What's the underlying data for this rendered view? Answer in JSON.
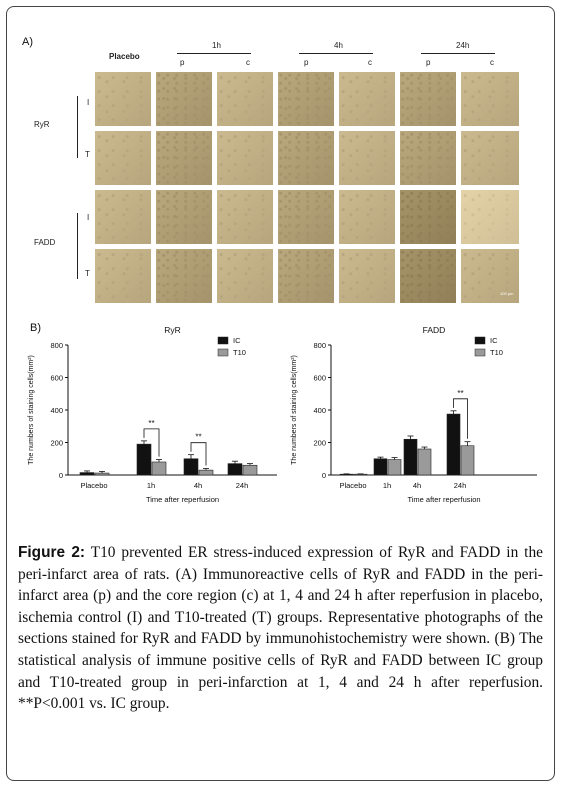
{
  "panel_a": {
    "label": "A)",
    "columns": {
      "placebo": "Placebo",
      "g1": "1h",
      "g4": "4h",
      "g24": "24h",
      "p": "p",
      "c": "c"
    },
    "rows": {
      "ryr": "RyR",
      "fadd": "FADD",
      "i": "I",
      "t": "T"
    },
    "scale_bar": "100 μm"
  },
  "panel_b": {
    "label": "B)"
  },
  "chart_data": [
    {
      "type": "bar",
      "title": "RyR",
      "ylabel": "The numbers of staining cells(mm²)",
      "xlabel": "Time after reperfusion",
      "categories": [
        "Placebo",
        "1h",
        "4h",
        "24h"
      ],
      "ylim": [
        0,
        800
      ],
      "yticks": [
        "0",
        "200",
        "400",
        "600",
        "800"
      ],
      "series": [
        {
          "name": "IC",
          "values": [
            15,
            190,
            100,
            70
          ],
          "errors": [
            10,
            20,
            25,
            15
          ],
          "color": "#111111"
        },
        {
          "name": "T10",
          "values": [
            12,
            80,
            30,
            60
          ],
          "errors": [
            10,
            15,
            10,
            10
          ],
          "color": "#9a9a9a"
        }
      ],
      "significance": [
        {
          "category": "1h",
          "label": "**"
        },
        {
          "category": "4h",
          "label": "**"
        }
      ]
    },
    {
      "type": "bar",
      "title": "FADD",
      "ylabel": "The numbers of staining cells(mm²)",
      "xlabel": "Time after reperfusion",
      "categories": [
        "Placebo",
        "1h",
        "4h",
        "24h"
      ],
      "ylim": [
        0,
        800
      ],
      "yticks": [
        "0",
        "200",
        "400",
        "600",
        "800"
      ],
      "series": [
        {
          "name": "IC",
          "values": [
            5,
            100,
            220,
            375
          ],
          "errors": [
            2,
            10,
            20,
            20
          ],
          "color": "#111111"
        },
        {
          "name": "T10",
          "values": [
            5,
            95,
            160,
            180
          ],
          "errors": [
            2,
            12,
            12,
            25
          ],
          "color": "#9a9a9a"
        }
      ],
      "significance": [
        {
          "category": "24h",
          "label": "**"
        }
      ]
    }
  ],
  "caption": {
    "label": "Figure 2:",
    "text": " T10 prevented ER stress-induced expression of RyR and FADD in the peri-infarct area of rats. (A) Immunoreactive cells of RyR and FADD in the peri-infarct area (p) and the core region (c) at 1, 4 and 24 h after reperfusion in placebo, ischemia control (I) and T10-treated (T) groups. Representative photographs of the sections stained for RyR and FADD by immunohistochemistry were shown. (B) The statistical analysis of immune positive cells of RyR and FADD between IC group and T10-treated group in peri-infarction at 1, 4 and 24 h after reperfusion. **P<0.001 vs. IC group."
  }
}
